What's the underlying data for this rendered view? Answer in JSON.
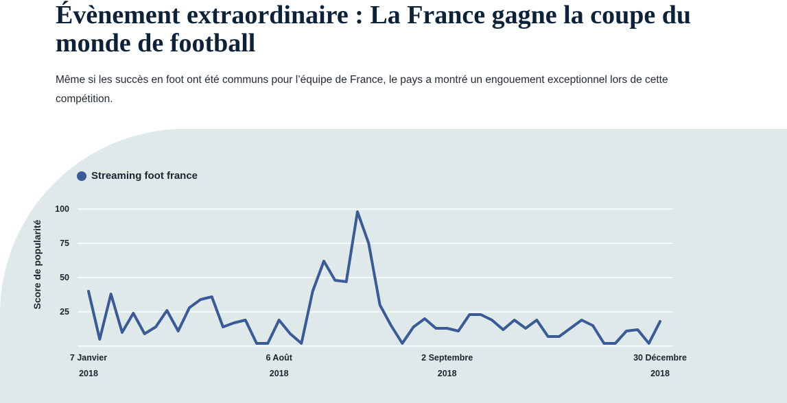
{
  "header": {
    "title": "Évènement extraordinaire : La France gagne la coupe du monde de football",
    "subtitle": "Même si les succès en foot ont été communs pour l’équipe de France, le pays a montré un engouement exceptionnel lors de cette compétition."
  },
  "chart_data": {
    "type": "line",
    "title": "Évènement extraordinaire : La France gagne la coupe du monde de football",
    "ylabel": "Score de popularité",
    "xlabel": "",
    "ylim": [
      0,
      100
    ],
    "yticks": [
      25,
      50,
      75,
      100
    ],
    "grid": true,
    "legend_position": "top-left",
    "xtick_labels": [
      {
        "index": 0,
        "line1": "7 Janvier",
        "line2": "2018"
      },
      {
        "index": 17,
        "line1": "6 Août",
        "line2": "2018"
      },
      {
        "index": 32,
        "line1": "2 Septembre",
        "line2": "2018"
      },
      {
        "index": 51,
        "line1": "30 Décembre",
        "line2": "2018"
      }
    ],
    "series": [
      {
        "name": "Streaming foot france",
        "color": "#3a5a98",
        "values": [
          40,
          5,
          38,
          10,
          24,
          9,
          14,
          26,
          11,
          28,
          34,
          36,
          14,
          17,
          19,
          2,
          2,
          19,
          9,
          2,
          40,
          62,
          48,
          47,
          98,
          75,
          30,
          15,
          2,
          14,
          20,
          13,
          13,
          11,
          23,
          23,
          19,
          12,
          19,
          13,
          19,
          7,
          7,
          13,
          19,
          15,
          2,
          2,
          11,
          12,
          2,
          18
        ]
      }
    ]
  }
}
